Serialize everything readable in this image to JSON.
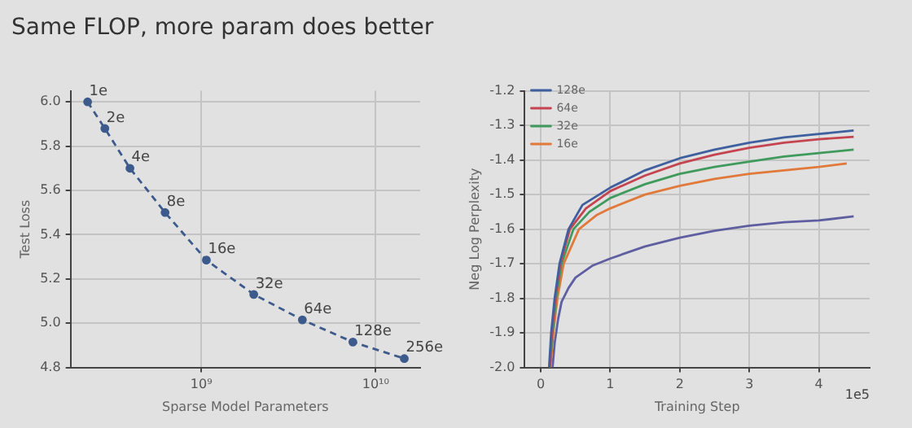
{
  "chart_data": [
    {
      "type": "line",
      "title": "Same FLOP, more param does better",
      "xlabel": "Sparse Model Parameters",
      "ylabel": "Test Loss",
      "x": [
        223000000.0,
        280000000.0,
        390000000.0,
        620000000.0,
        1070000000.0,
        2000000000.0,
        3800000000.0,
        7400000000.0,
        14600000000.0
      ],
      "series": [
        {
          "color": "#3d5a8c",
          "values": [
            6.0,
            5.88,
            5.7,
            5.5,
            5.285,
            5.13,
            5.015,
            4.915,
            4.84
          ]
        }
      ],
      "log": "x",
      "xlim": [
        178000000.0,
        18000000000.0
      ],
      "xticks": [
        {
          "value": 1000000000.0,
          "label": "10⁹"
        },
        {
          "value": 10000000000.0,
          "label": "10¹⁰"
        }
      ],
      "ylim": [
        4.8,
        6.05
      ],
      "yticks": [
        4.8,
        {
          "value": 5,
          "label": "5.0"
        },
        5.2,
        5.4,
        5.6,
        5.8,
        {
          "value": 6,
          "label": "6.0"
        }
      ],
      "grid": true,
      "legend": false,
      "marker": "circle",
      "line_style": "dashed",
      "annotations": [
        {
          "text": "1e",
          "x": 223000000.0,
          "y": 6.0
        },
        {
          "text": "2e",
          "x": 280000000.0,
          "y": 5.88
        },
        {
          "text": "4e",
          "x": 390000000.0,
          "y": 5.7
        },
        {
          "text": "8e",
          "x": 620000000.0,
          "y": 5.5
        },
        {
          "text": "16e",
          "x": 1070000000.0,
          "y": 5.285
        },
        {
          "text": "32e",
          "x": 2000000000.0,
          "y": 5.13
        },
        {
          "text": "64e",
          "x": 3800000000.0,
          "y": 5.015
        },
        {
          "text": "128e",
          "x": 7400000000.0,
          "y": 4.915
        },
        {
          "text": "256e",
          "x": 14600000000.0,
          "y": 4.84
        }
      ]
    },
    {
      "type": "line",
      "xlabel": "Training Step",
      "ylabel": "Neg Log Perplexity",
      "series": [
        {
          "name": "128e",
          "color": "#3f5f9f",
          "x": [
            0.12,
            0.15,
            0.2,
            0.27,
            0.4,
            0.6,
            1,
            1.5,
            2,
            2.5,
            3,
            3.5,
            4,
            4.5
          ],
          "values": [
            -2.0,
            -1.9,
            -1.8,
            -1.7,
            -1.6,
            -1.53,
            -1.48,
            -1.43,
            -1.395,
            -1.37,
            -1.35,
            -1.335,
            -1.325,
            -1.315
          ]
        },
        {
          "name": "64e",
          "color": "#c44450",
          "x": [
            0.13,
            0.16,
            0.21,
            0.28,
            0.42,
            0.65,
            1,
            1.5,
            2,
            2.5,
            3,
            3.5,
            4,
            4.5
          ],
          "values": [
            -2.0,
            -1.9,
            -1.8,
            -1.7,
            -1.6,
            -1.54,
            -1.49,
            -1.445,
            -1.41,
            -1.385,
            -1.365,
            -1.35,
            -1.34,
            -1.333
          ]
        },
        {
          "name": "32e",
          "color": "#3f9a5c",
          "x": [
            0.13,
            0.17,
            0.22,
            0.3,
            0.47,
            0.7,
            1,
            1.5,
            2,
            2.5,
            3,
            3.5,
            4,
            4.5
          ],
          "values": [
            -2.0,
            -1.9,
            -1.8,
            -1.7,
            -1.6,
            -1.55,
            -1.51,
            -1.47,
            -1.44,
            -1.42,
            -1.405,
            -1.39,
            -1.38,
            -1.37
          ]
        },
        {
          "name": "16e",
          "color": "#e0793a",
          "x": [
            0.14,
            0.18,
            0.24,
            0.33,
            0.55,
            0.8,
            1,
            1.5,
            2,
            2.5,
            3,
            3.5,
            4,
            4.4
          ],
          "values": [
            -2.0,
            -1.9,
            -1.8,
            -1.7,
            -1.6,
            -1.56,
            -1.54,
            -1.5,
            -1.475,
            -1.455,
            -1.44,
            -1.43,
            -1.42,
            -1.41
          ]
        },
        {
          "color": "#5e5ea0",
          "x": [
            0.17,
            0.2,
            0.25,
            0.3,
            0.4,
            0.5,
            0.75,
            1,
            1.5,
            2,
            2.5,
            3,
            3.5,
            4,
            4.5
          ],
          "values": [
            -2.0,
            -1.93,
            -1.86,
            -1.81,
            -1.77,
            -1.74,
            -1.705,
            -1.685,
            -1.65,
            -1.625,
            -1.605,
            -1.59,
            -1.58,
            -1.575,
            -1.563
          ]
        }
      ],
      "xlim": [
        -0.23,
        4.73
      ],
      "xticks": [
        0,
        1,
        2,
        3,
        4
      ],
      "ylim": [
        -2.0,
        -1.2
      ],
      "yticks": [
        {
          "value": -2,
          "label": "-2.0"
        },
        -1.9,
        -1.8,
        -1.7,
        -1.6,
        -1.5,
        -1.4,
        -1.3,
        -1.2
      ],
      "grid": true,
      "legend": "top left",
      "marker": "none",
      "line_style": "solid",
      "annotations": [
        "1e5"
      ]
    }
  ]
}
